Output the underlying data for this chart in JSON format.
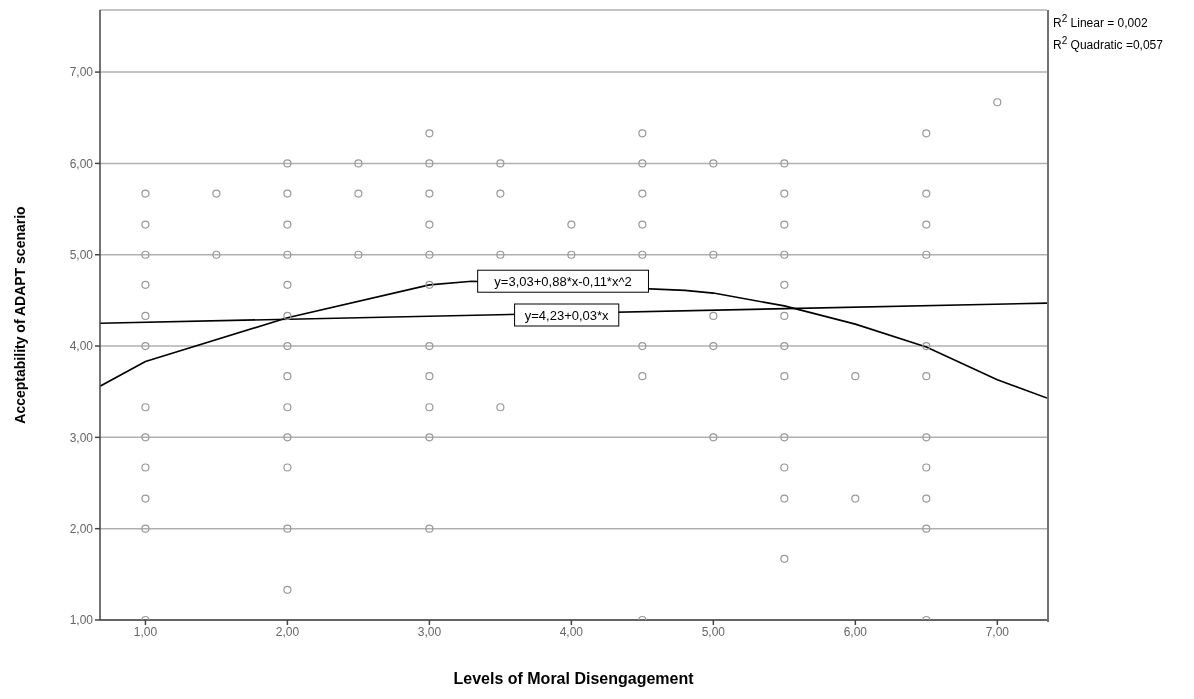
{
  "chart_data": {
    "type": "scatter",
    "xlabel": "Levels of Moral Disengagement",
    "ylabel": "Acceptability of ADAPT scenario",
    "xlim": [
      0.68,
      7.35
    ],
    "ylim": [
      1,
      7.68
    ],
    "xticks": [
      {
        "value": 1,
        "label": "1,00"
      },
      {
        "value": 2,
        "label": "2,00"
      },
      {
        "value": 3,
        "label": "3,00"
      },
      {
        "value": 4,
        "label": "4,00"
      },
      {
        "value": 5,
        "label": "5,00"
      },
      {
        "value": 6,
        "label": "6,00"
      },
      {
        "value": 7,
        "label": "7,00"
      }
    ],
    "yticks": [
      {
        "value": 1,
        "label": "1,00"
      },
      {
        "value": 2,
        "label": "2,00"
      },
      {
        "value": 3,
        "label": "3,00"
      },
      {
        "value": 4,
        "label": "4,00"
      },
      {
        "value": 5,
        "label": "5,00"
      },
      {
        "value": 6,
        "label": "6,00"
      },
      {
        "value": 7,
        "label": "7,00"
      }
    ],
    "grid": "y",
    "legend": false,
    "series": [
      {
        "color": "#999999",
        "marker": "circle",
        "x": [
          1,
          1,
          1,
          1,
          1,
          1,
          1,
          1,
          1,
          1,
          1,
          1,
          1.5,
          1.5,
          2,
          2,
          2,
          2,
          2,
          2,
          2,
          2,
          2,
          2,
          2,
          2,
          2,
          2.5,
          2.5,
          2.5,
          3,
          3,
          3,
          3,
          3,
          3,
          3,
          3,
          3,
          3,
          3,
          3.5,
          3.5,
          3.5,
          3.5,
          4,
          4,
          4.5,
          4.5,
          4.5,
          4.5,
          4.5,
          4.5,
          4.5,
          4.5,
          5,
          5,
          5,
          5,
          5,
          5.5,
          5.5,
          5.5,
          5.5,
          5.5,
          5.5,
          5.5,
          5.5,
          5.5,
          5.5,
          5.5,
          5.5,
          6,
          6,
          6.5,
          6.5,
          6.5,
          6.5,
          6.5,
          6.5,
          6.5,
          6.5,
          6.5,
          6.5,
          6.5,
          7
        ],
        "values": [
          5.67,
          5.33,
          5,
          4.67,
          4.33,
          4,
          3.33,
          3,
          2.67,
          2.33,
          2,
          1,
          5.67,
          5,
          6,
          5.67,
          5.33,
          5,
          4.67,
          4.33,
          4,
          3.67,
          3.33,
          3,
          2.67,
          2,
          1.33,
          6,
          5.67,
          5,
          6.33,
          6,
          5.67,
          5.33,
          5,
          4.67,
          4,
          3.67,
          3.33,
          3,
          2,
          6,
          5.67,
          5,
          3.33,
          5.33,
          5,
          6.33,
          6,
          5.67,
          5.33,
          5,
          4,
          3.67,
          1,
          6,
          5,
          4.33,
          4,
          3,
          6,
          5.67,
          5.33,
          5,
          4.67,
          4.33,
          4,
          3.67,
          3,
          2.67,
          2.33,
          1.67,
          3.67,
          2.33,
          6.33,
          5.67,
          5.33,
          5,
          4,
          3.67,
          3,
          2.67,
          2.33,
          2,
          1,
          6.67
        ]
      },
      {
        "type": "line",
        "color": "#000000",
        "marker": "none",
        "line_style": "solid",
        "x": [
          0.68,
          7.35
        ],
        "values": [
          4.25,
          4.47
        ]
      },
      {
        "type": "line",
        "color": "#000000",
        "marker": "none",
        "line_style": "solid",
        "x": [
          0.68,
          1,
          2,
          3,
          3.3,
          4.8,
          5,
          5.5,
          6,
          6.5,
          7,
          7.35
        ],
        "values": [
          3.56,
          3.83,
          4.31,
          4.67,
          4.71,
          4.61,
          4.58,
          4.44,
          4.24,
          3.99,
          3.63,
          3.43
        ]
      }
    ],
    "annotations": [
      {
        "text": "y=3,03+0,88*x-0,11*x^2",
        "x": 3.34,
        "y": 4.71
      },
      {
        "text": "y=4,23+0,03*x",
        "x": 3.6,
        "y": 4.34
      },
      "R$^{2}$ Linear = 0,002",
      "R$^{2}$ Quadratic =0,057"
    ]
  }
}
